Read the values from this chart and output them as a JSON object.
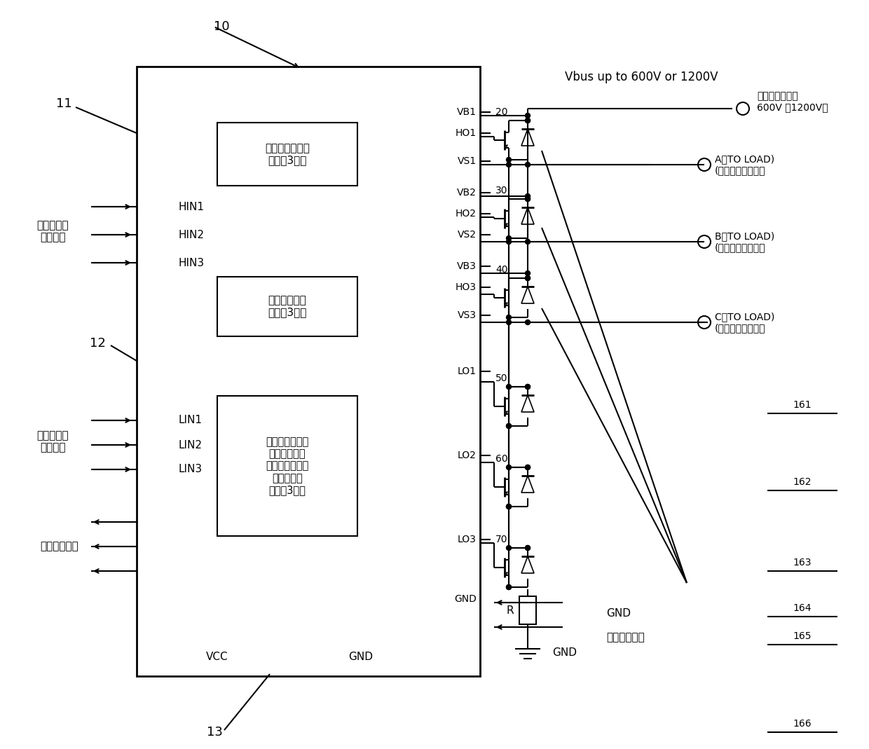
{
  "bg_color": "#ffffff",
  "line_color": "#000000",
  "vbus_label": "Vbus up to 600V or 1200V",
  "vbus_cn": "（母线电压高达\n600V 或1200V）",
  "high_drive_label": "高压侧驱动模块\n（共有3路）",
  "level_shift_label": "电平转移模块\n（共有3路）",
  "low_drive_label": "低压侧驱动模块\n（控制逻辑电\n路、保护电路、\n驱动电路）\n（共有3路）",
  "high_side_ctrl": "高压侧逻辑\n控制信号",
  "low_side_ctrl": "低压侧逻辑\n控制信号",
  "protection_out": "保护信号输出",
  "detect_in": "检测信号输入",
  "load_A": "A（TO LOAD)\n(接三相电机相线）",
  "load_B": "B（TO LOAD)\n(接三相电机相线）",
  "load_C": "C（TO LOAD)\n(接三相电机相线）"
}
